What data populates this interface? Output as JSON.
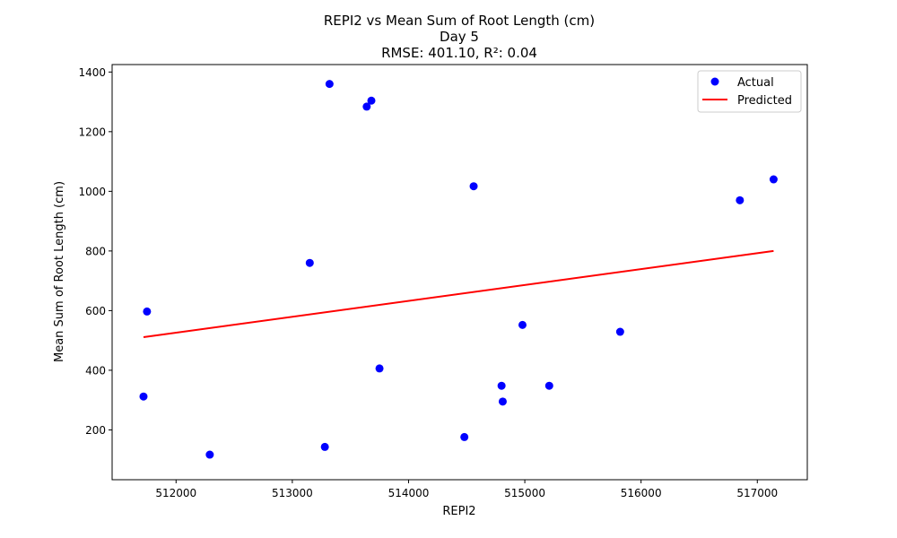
{
  "chart_data": {
    "type": "scatter",
    "title_lines": [
      "REPI2 vs Mean Sum of Root Length (cm)",
      "Day 5",
      "RMSE: 401.10, R²: 0.04"
    ],
    "xlabel": "REPI2",
    "ylabel": "Mean Sum of Root Length (cm)",
    "xlim": [
      511450,
      517430
    ],
    "ylim": [
      33,
      1425
    ],
    "xticks": [
      512000,
      513000,
      514000,
      515000,
      516000,
      517000
    ],
    "yticks": [
      200,
      400,
      600,
      800,
      1000,
      1200,
      1400
    ],
    "xtick_labels": [
      "512000",
      "513000",
      "514000",
      "515000",
      "516000",
      "517000"
    ],
    "ytick_labels": [
      "200",
      "400",
      "600",
      "800",
      "1000",
      "1200",
      "1400"
    ],
    "grid": false,
    "legend_position": "top-right",
    "series": [
      {
        "name": "Actual",
        "kind": "scatter",
        "color": "#0000ff",
        "points": [
          {
            "x": 511720,
            "y": 312
          },
          {
            "x": 511750,
            "y": 597
          },
          {
            "x": 512290,
            "y": 117
          },
          {
            "x": 513150,
            "y": 760
          },
          {
            "x": 513280,
            "y": 143
          },
          {
            "x": 513320,
            "y": 1360
          },
          {
            "x": 513640,
            "y": 1284
          },
          {
            "x": 513680,
            "y": 1304
          },
          {
            "x": 513750,
            "y": 406
          },
          {
            "x": 514480,
            "y": 176
          },
          {
            "x": 514560,
            "y": 1017
          },
          {
            "x": 514800,
            "y": 348
          },
          {
            "x": 514810,
            "y": 295
          },
          {
            "x": 514980,
            "y": 552
          },
          {
            "x": 515210,
            "y": 348
          },
          {
            "x": 515820,
            "y": 529
          },
          {
            "x": 516850,
            "y": 970
          },
          {
            "x": 517140,
            "y": 1040
          }
        ]
      },
      {
        "name": "Predicted",
        "kind": "line",
        "color": "#ff0000",
        "points": [
          {
            "x": 511720,
            "y": 511
          },
          {
            "x": 517140,
            "y": 800
          }
        ]
      }
    ]
  }
}
